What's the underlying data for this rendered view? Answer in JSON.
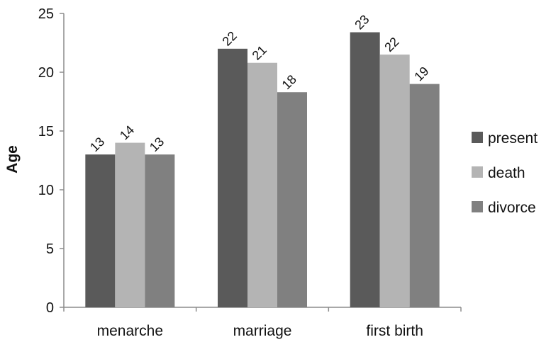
{
  "chart_data": {
    "type": "bar",
    "ylabel": "Age",
    "xlabel": "",
    "categories": [
      "menarche",
      "marriage",
      "first birth"
    ],
    "ylim": [
      0,
      25
    ],
    "yticks": [
      0,
      5,
      10,
      15,
      20,
      25
    ],
    "grid": false,
    "legend_position": "right",
    "series": [
      {
        "name": "present",
        "color": "#5a5a5a",
        "values": [
          13.0,
          22.0,
          23.4
        ],
        "labels": [
          "13",
          "22",
          "23"
        ]
      },
      {
        "name": "death",
        "color": "#b4b4b4",
        "values": [
          14.0,
          20.8,
          21.5
        ],
        "labels": [
          "14",
          "21",
          "22"
        ]
      },
      {
        "name": "divorce",
        "color": "#808080",
        "values": [
          13.0,
          18.3,
          19.0
        ],
        "labels": [
          "13",
          "18",
          "19"
        ]
      }
    ]
  }
}
